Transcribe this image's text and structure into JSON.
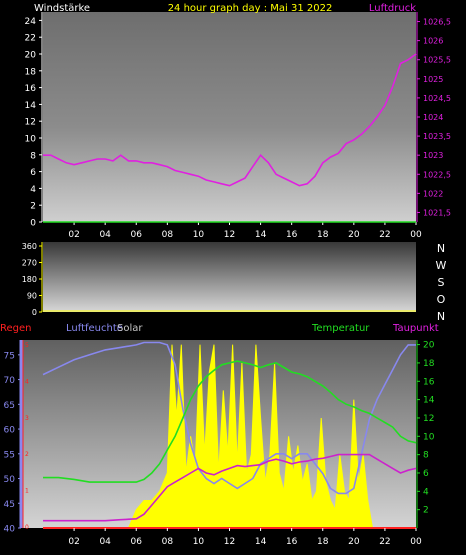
{
  "colors": {
    "pressure": "#e020e0",
    "temperature": "#22dd22",
    "humidity": "#8888ee",
    "solar": "#ffff00",
    "dewpoint": "#cc22cc",
    "rain": "#ff2020",
    "wind_label": "#ffffff",
    "title": "#ffff00"
  },
  "chart_data": [
    {
      "type": "line",
      "panel": "top",
      "title": "24 hour graph day : Mai 31 2022",
      "left_label": "Windstärke",
      "right_label": "Luftdruck",
      "x_ticks": [
        "02",
        "04",
        "06",
        "08",
        "10",
        "12",
        "14",
        "16",
        "18",
        "20",
        "22",
        "00"
      ],
      "y_left_ticks": [
        "0",
        "2",
        "4",
        "6",
        "8",
        "10",
        "12",
        "14",
        "16",
        "18",
        "20",
        "22",
        "24"
      ],
      "y_left_range": [
        0,
        25
      ],
      "y_right_ticks": [
        "1021,5",
        "1022",
        "1022,5",
        "1023",
        "1023,5",
        "1024",
        "1024,5",
        "1025",
        "1025,5",
        "1026",
        "1026,5"
      ],
      "y_right_range": [
        1021.25,
        1026.75
      ],
      "series": [
        {
          "name": "Luftdruck",
          "axis": "right",
          "x": [
            0,
            0.5,
            1,
            1.5,
            2,
            2.5,
            3,
            3.5,
            4,
            4.5,
            5,
            5.5,
            6,
            6.5,
            7,
            7.5,
            8,
            8.5,
            9,
            9.5,
            10,
            10.5,
            11,
            11.5,
            12,
            12.5,
            13,
            13.5,
            14,
            14.5,
            15,
            15.5,
            16,
            16.5,
            17,
            17.5,
            18,
            18.5,
            19,
            19.5,
            20,
            20.5,
            21,
            21.5,
            22,
            22.5,
            23,
            23.5,
            24
          ],
          "y": [
            1023.0,
            1023.0,
            1022.9,
            1022.8,
            1022.75,
            1022.8,
            1022.85,
            1022.9,
            1022.9,
            1022.85,
            1023.0,
            1022.85,
            1022.85,
            1022.8,
            1022.8,
            1022.75,
            1022.7,
            1022.6,
            1022.55,
            1022.5,
            1022.45,
            1022.35,
            1022.3,
            1022.25,
            1022.2,
            1022.3,
            1022.4,
            1022.7,
            1023.0,
            1022.8,
            1022.5,
            1022.4,
            1022.3,
            1022.2,
            1022.25,
            1022.45,
            1022.8,
            1022.95,
            1023.05,
            1023.3,
            1023.4,
            1023.55,
            1023.75,
            1024.0,
            1024.3,
            1024.8,
            1025.4,
            1025.5,
            1025.65
          ]
        },
        {
          "name": "Windstärke",
          "axis": "left",
          "x": [
            0,
            24
          ],
          "y": [
            0,
            0
          ]
        }
      ]
    },
    {
      "type": "area",
      "panel": "middle",
      "right_labels": [
        "N",
        "W",
        "S",
        "O",
        "N"
      ],
      "x_ticks": [],
      "y_left_ticks": [
        "0",
        "90",
        "180",
        "270",
        "360"
      ],
      "y_left_range": [
        0,
        360
      ],
      "series": []
    },
    {
      "type": "line",
      "panel": "bottom",
      "labels": {
        "rain": "Regen",
        "humidity": "Luftfeuchte",
        "solar": "Solar",
        "temperature": "Temperatur",
        "dewpoint": "Taupunkt"
      },
      "x_ticks": [
        "02",
        "04",
        "06",
        "08",
        "10",
        "12",
        "14",
        "16",
        "18",
        "20",
        "22",
        "00"
      ],
      "y_left_ticks": [
        "40",
        "45",
        "50",
        "55",
        "60",
        "65",
        "70",
        "75"
      ],
      "y_left_range": [
        40,
        78
      ],
      "y_right_ticks": [
        "2",
        "4",
        "6",
        "8",
        "10",
        "12",
        "14",
        "16",
        "18",
        "20"
      ],
      "y_right_range": [
        0,
        20.5
      ],
      "rain_ticks": [
        "0",
        "1",
        "2",
        "3",
        "4",
        "5"
      ],
      "series": [
        {
          "name": "Luftfeuchte",
          "axis": "left",
          "x": [
            0,
            1,
            2,
            3,
            4,
            5,
            6,
            6.5,
            7,
            7.5,
            8,
            8.5,
            9,
            9.5,
            10,
            10.5,
            11,
            11.5,
            12,
            12.5,
            13,
            13.5,
            14,
            14.5,
            15,
            15.5,
            16,
            16.5,
            17,
            17.5,
            18,
            18.5,
            19,
            19.5,
            20,
            20.5,
            21,
            21.5,
            22,
            22.5,
            23,
            23.5,
            24
          ],
          "y": [
            71,
            72.5,
            74,
            75,
            76,
            76.5,
            77,
            77.5,
            77.5,
            77.5,
            77,
            73,
            64,
            57,
            52,
            50,
            49,
            50,
            49,
            48,
            49,
            50,
            53,
            54,
            55,
            55,
            54,
            55,
            55,
            53,
            51,
            48,
            47,
            47,
            48,
            55,
            62,
            66,
            69,
            72,
            75,
            77,
            77
          ]
        },
        {
          "name": "Temperatur",
          "axis": "right",
          "x": [
            0,
            1,
            2,
            3,
            4,
            5,
            6,
            6.5,
            7,
            7.5,
            8,
            8.5,
            9,
            9.5,
            10,
            10.5,
            11,
            11.5,
            12,
            12.5,
            13,
            13.5,
            14,
            14.5,
            15,
            15.5,
            16,
            16.5,
            17,
            17.5,
            18,
            18.5,
            19,
            19.5,
            20,
            20.5,
            21,
            21.5,
            22,
            22.5,
            23,
            23.5,
            24
          ],
          "y": [
            5.5,
            5.5,
            5.3,
            5.0,
            5.0,
            5.0,
            5.0,
            5.3,
            6.0,
            7.0,
            8.5,
            10.0,
            12.0,
            14.0,
            15.5,
            16.5,
            17.2,
            17.8,
            18.0,
            18.2,
            18.0,
            17.8,
            17.5,
            17.8,
            18.0,
            17.5,
            17.0,
            16.8,
            16.5,
            16.0,
            15.5,
            14.8,
            14.0,
            13.5,
            13.2,
            12.8,
            12.5,
            12.0,
            11.5,
            11.0,
            10.0,
            9.5,
            9.3
          ]
        },
        {
          "name": "Taupunkt",
          "axis": "right",
          "x": [
            0,
            1,
            2,
            3,
            4,
            5,
            6,
            6.5,
            7,
            7.5,
            8,
            8.5,
            9,
            9.5,
            10,
            10.5,
            11,
            11.5,
            12,
            12.5,
            13,
            13.5,
            14,
            14.5,
            15,
            15.5,
            16,
            16.5,
            17,
            17.5,
            18,
            18.5,
            19,
            19.5,
            20,
            20.5,
            21,
            21.5,
            22,
            22.5,
            23,
            23.5,
            24
          ],
          "y": [
            0.8,
            0.8,
            0.8,
            0.8,
            0.8,
            0.9,
            1.0,
            1.5,
            2.5,
            3.5,
            4.5,
            5.0,
            5.5,
            6.0,
            6.5,
            6.0,
            5.8,
            6.2,
            6.5,
            6.8,
            6.7,
            6.8,
            6.9,
            7.3,
            7.5,
            7.3,
            7.0,
            7.2,
            7.3,
            7.5,
            7.6,
            7.8,
            8.0,
            8.0,
            8.0,
            8.0,
            8.0,
            7.5,
            7.0,
            6.5,
            6.0,
            6.3,
            6.5
          ]
        },
        {
          "name": "Solar",
          "axis": "right",
          "x": [
            0,
            5.5,
            6,
            6.5,
            7,
            7.5,
            8,
            8.3,
            8.6,
            8.9,
            9.2,
            9.5,
            9.8,
            10.1,
            10.4,
            10.7,
            11.0,
            11.3,
            11.6,
            11.9,
            12.2,
            12.5,
            12.8,
            13.1,
            13.4,
            13.7,
            14.0,
            14.3,
            14.6,
            14.9,
            15.2,
            15.5,
            15.8,
            16.1,
            16.4,
            16.7,
            17.0,
            17.3,
            17.6,
            17.9,
            18.2,
            18.5,
            18.8,
            19.1,
            19.4,
            19.7,
            20.0,
            20.3,
            20.6,
            20.9,
            21.2,
            24
          ],
          "y": [
            0,
            0,
            2,
            3,
            3,
            4,
            6,
            20,
            12,
            20,
            6,
            10,
            7,
            20,
            8,
            17,
            20,
            6,
            15,
            8,
            20,
            7,
            18,
            6,
            8,
            20,
            12,
            5,
            8,
            18,
            6,
            4,
            10,
            6,
            9,
            5,
            7,
            3,
            4,
            12,
            5,
            3,
            2,
            8,
            4,
            3,
            14,
            5,
            8,
            3,
            0,
            0
          ]
        },
        {
          "name": "Regen",
          "axis": "right",
          "x": [
            0,
            24
          ],
          "y": [
            0,
            0
          ]
        }
      ]
    }
  ]
}
